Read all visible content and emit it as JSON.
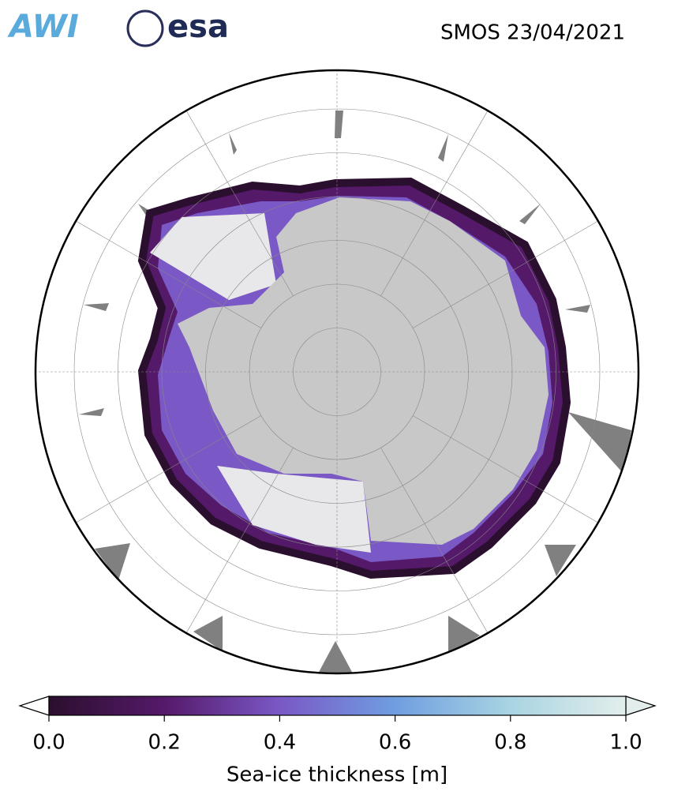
{
  "header": {
    "logos": [
      "AWI",
      "esa"
    ],
    "title": "SMOS 23/04/2021"
  },
  "colorbar": {
    "label": "Sea-ice thickness [m]",
    "lim": [
      0,
      1
    ],
    "ticks": [
      {
        "value": 0,
        "label": "0.0"
      },
      0.2,
      0.4,
      0.6,
      0.8,
      {
        "value": 1,
        "label": "1.0"
      }
    ],
    "colors": [
      "#2b0f2e",
      "#55196a",
      "#7a58c6",
      "#6f9ee0",
      "#a9d4e2",
      "#e3eeec"
    ]
  }
}
